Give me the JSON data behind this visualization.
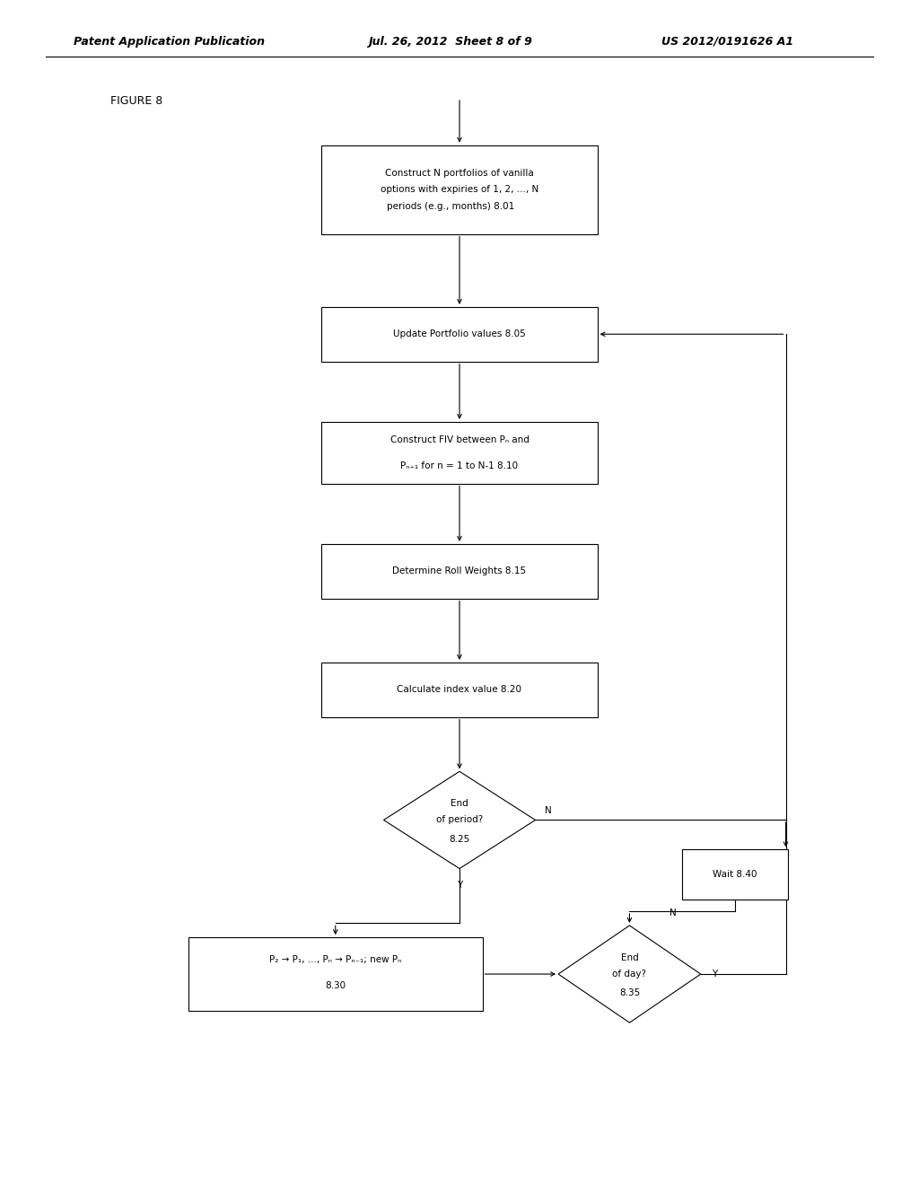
{
  "bg_color": "#ffffff",
  "header_left": "Patent Application Publication",
  "header_mid": "Jul. 26, 2012  Sheet 8 of 9",
  "header_right": "US 2012/0191626 A1",
  "figure_label": "FIGURE 8",
  "font_size_box": 7.5,
  "font_size_header": 9,
  "font_size_label": 9,
  "lw": 0.8
}
